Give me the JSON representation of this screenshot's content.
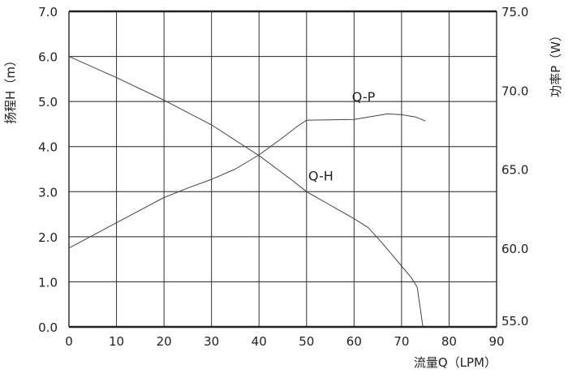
{
  "chart_data": {
    "type": "line",
    "xlabel": "流量Q（LPM）",
    "ylabel": "扬程H（m）",
    "y2label": "功率P（W）",
    "xlim": [
      0,
      90
    ],
    "ylim": [
      0,
      7
    ],
    "y2lim": [
      55,
      75
    ],
    "grid": true,
    "x_ticks": [
      "0",
      "10",
      "20",
      "30",
      "40",
      "50",
      "60",
      "70",
      "80",
      "90"
    ],
    "y_ticks": [
      "0.0",
      "1.0",
      "2.0",
      "3.0",
      "4.0",
      "5.0",
      "6.0",
      "7.0"
    ],
    "y2_ticks": [
      "55.0",
      "60.0",
      "65.0",
      "70.0",
      "75.0"
    ],
    "series": [
      {
        "name": "Q-H",
        "axis": "left",
        "points": [
          [
            0,
            6.0
          ],
          [
            10,
            5.53
          ],
          [
            20,
            5.03
          ],
          [
            30,
            4.48
          ],
          [
            40,
            3.8
          ],
          [
            47,
            3.25
          ],
          [
            50,
            3.0
          ],
          [
            55,
            2.7
          ],
          [
            60,
            2.4
          ],
          [
            63,
            2.2
          ],
          [
            66,
            1.85
          ],
          [
            70,
            1.35
          ],
          [
            72,
            1.1
          ],
          [
            73.3,
            0.88
          ],
          [
            74.5,
            0
          ]
        ]
      },
      {
        "name": "Q-P",
        "axis": "right",
        "points": [
          [
            0,
            60.0
          ],
          [
            10,
            61.6
          ],
          [
            20,
            63.2
          ],
          [
            25,
            63.8
          ],
          [
            30,
            64.35
          ],
          [
            35,
            65.0
          ],
          [
            40,
            65.9
          ],
          [
            45,
            67.0
          ],
          [
            48,
            67.7
          ],
          [
            50,
            68.1
          ],
          [
            60,
            68.15
          ],
          [
            67,
            68.5
          ],
          [
            70,
            68.45
          ],
          [
            73,
            68.3
          ],
          [
            75,
            68.05
          ]
        ]
      }
    ],
    "annotations": [
      {
        "text": "Q-P",
        "x": 62,
        "y": 5.0
      },
      {
        "text": "Q-H",
        "x": 53,
        "y": 3.25
      }
    ]
  }
}
